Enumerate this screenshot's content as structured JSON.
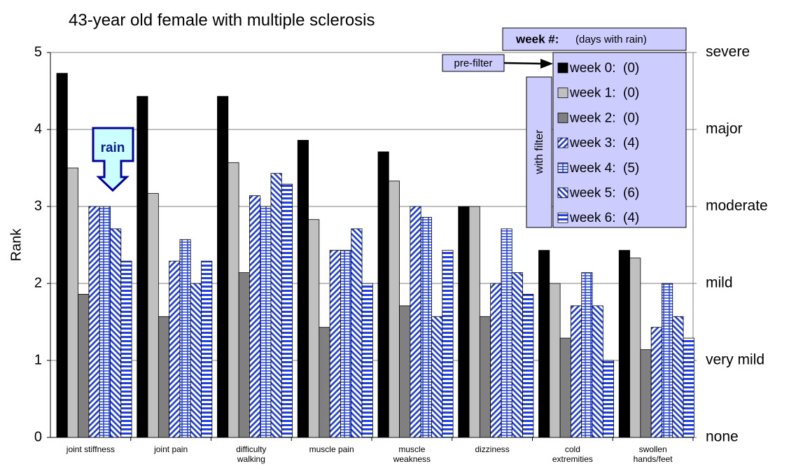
{
  "chart_data": {
    "type": "bar",
    "title": "43-year old female with multiple sclerosis",
    "y_label": "Rank",
    "categories": [
      "joint stiffness",
      "joint pain",
      "difficulty walking",
      "muscle pain",
      "muscle weakness",
      "dizziness",
      "cold extremities",
      "swollen hands/feet"
    ],
    "series": [
      {
        "name": "week 0:  (0)",
        "color": "#000000",
        "pattern": "solid",
        "values": [
          4.73,
          4.43,
          4.43,
          3.86,
          3.71,
          3.0,
          2.43,
          2.43
        ]
      },
      {
        "name": "week 1:  (0)",
        "color": "#c0c0c0",
        "pattern": "solid",
        "values": [
          3.5,
          3.17,
          3.57,
          2.83,
          3.33,
          3.0,
          2.0,
          2.33
        ]
      },
      {
        "name": "week 2:  (0)",
        "color": "#808080",
        "pattern": "solid",
        "values": [
          1.86,
          1.57,
          2.14,
          1.43,
          1.71,
          1.57,
          1.29,
          1.14
        ]
      },
      {
        "name": "week 3:  (4)",
        "color": "#1f3fdf",
        "pattern": "diag-up",
        "values": [
          3.0,
          2.29,
          3.14,
          2.43,
          3.0,
          2.0,
          1.71,
          1.43
        ]
      },
      {
        "name": "week 4:  (5)",
        "color": "#1f3fdf",
        "pattern": "grid",
        "values": [
          3.0,
          2.57,
          3.0,
          2.43,
          2.86,
          2.71,
          2.14,
          2.0
        ]
      },
      {
        "name": "week 5:  (6)",
        "color": "#1f3fdf",
        "pattern": "diag-down",
        "values": [
          2.71,
          2.0,
          3.43,
          2.71,
          1.57,
          2.14,
          1.71,
          1.57
        ]
      },
      {
        "name": "week 6:  (4)",
        "color": "#1f3fdf",
        "pattern": "horizontal",
        "values": [
          2.29,
          2.29,
          3.29,
          2.0,
          2.43,
          1.86,
          1.0,
          1.29
        ]
      }
    ],
    "ylim": [
      0,
      5
    ],
    "yticks": [
      0,
      1,
      2,
      3,
      4,
      5
    ],
    "y2lim": [
      0,
      5
    ],
    "y2ticks": [
      {
        "value": 0,
        "label": "none"
      },
      {
        "value": 1,
        "label": "very mild"
      },
      {
        "value": 2,
        "label": "mild"
      },
      {
        "value": 3,
        "label": "moderate"
      },
      {
        "value": 4,
        "label": "major"
      },
      {
        "value": 5,
        "label": "severe"
      }
    ],
    "grid": true,
    "legend_title": "week #:",
    "legend_subtitle": "(days with rain)",
    "annotations": {
      "pre_filter": "pre-filter",
      "with_filter": "with filter",
      "rain": "rain"
    }
  }
}
